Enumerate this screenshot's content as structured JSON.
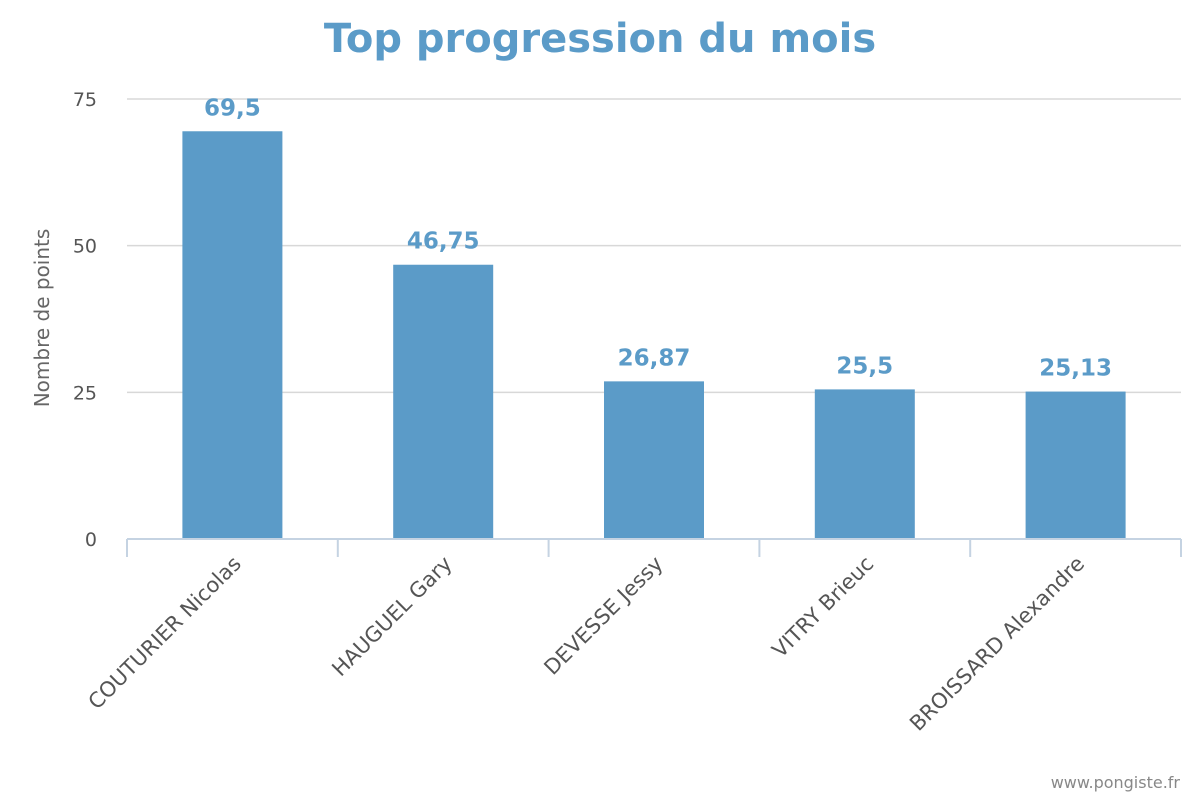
{
  "chart_data": {
    "type": "bar",
    "title": "Top progression du mois",
    "ylabel": "Nombre de points",
    "xlabel": "",
    "categories": [
      "COUTURIER Nicolas",
      "HAUGUEL Gary",
      "DEVESSE Jessy",
      "VITRY Brieuc",
      "BROISSARD Alexandre"
    ],
    "values": [
      69.5,
      46.75,
      26.87,
      25.5,
      25.13
    ],
    "data_labels": [
      "69,5",
      "46,75",
      "26,87",
      "25,5",
      "25,13"
    ],
    "ylim": [
      0,
      75
    ],
    "yticks": [
      0,
      25,
      50,
      75
    ],
    "grid": true,
    "legend": "none",
    "bar_color": "#5b9bc8"
  },
  "credit": "www.pongiste.fr"
}
